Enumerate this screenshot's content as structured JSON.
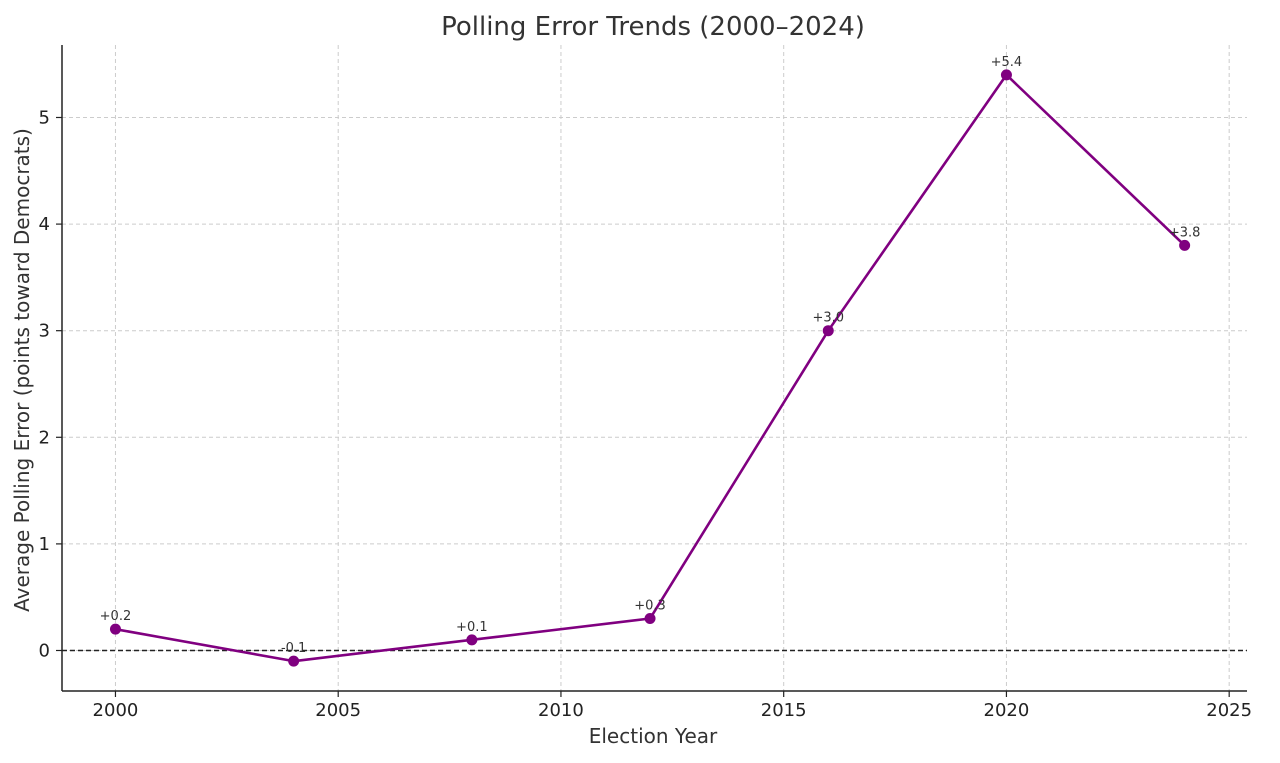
{
  "chart_data": {
    "type": "line",
    "title": "Polling Error Trends (2000–2024)",
    "xlabel": "Election Year",
    "ylabel": "Average Polling Error (points toward Democrats)",
    "x_ticks": [
      "2000",
      "2005",
      "2010",
      "2015",
      "2020",
      "2025"
    ],
    "y_ticks": [
      "0",
      "1",
      "2",
      "3",
      "4",
      "5"
    ],
    "xlim": [
      1998.8,
      2025.4
    ],
    "ylim": [
      -0.38,
      5.68
    ],
    "grid": true,
    "reference_line_y": 0,
    "series": [
      {
        "color": "#800080",
        "x": [
          2000,
          2004,
          2008,
          2012,
          2016,
          2020,
          2024
        ],
        "values": [
          0.2,
          -0.1,
          0.1,
          0.3,
          3.0,
          5.4,
          3.8
        ],
        "labels": [
          "+0.2",
          "-0.1",
          "+0.1",
          "+0.3",
          "+3.0",
          "+5.4",
          "+3.8"
        ]
      }
    ]
  }
}
